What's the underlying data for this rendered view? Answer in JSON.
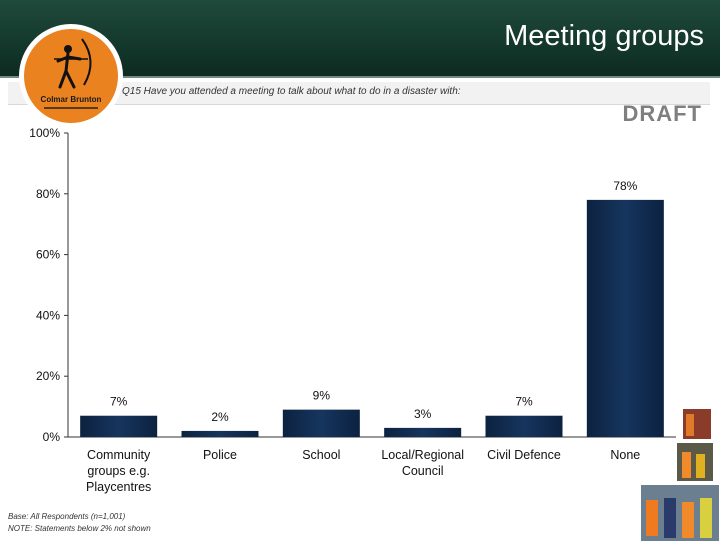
{
  "slide": {
    "title": "Meeting groups",
    "question": "Q15  Have you attended a meeting to talk about what to do in a disaster with:",
    "draft_label": "DRAFT",
    "logo_text": "Colmar Brunton",
    "footnote_base": "Base: All Respondents (n=1,001)",
    "footnote_note": "NOTE: Statements below 2% not shown",
    "colors": {
      "header": "#0c2a20",
      "bar": "#16355e",
      "logo_orange": "#e9821f"
    }
  },
  "chart_data": {
    "type": "bar",
    "categories": [
      "Community groups e.g. Playcentres",
      "Police",
      "School",
      "Local/Regional Council",
      "Civil Defence",
      "None"
    ],
    "category_lines": [
      [
        "Community",
        "groups e.g.",
        "Playcentres"
      ],
      [
        "Police"
      ],
      [
        "School"
      ],
      [
        "Local/Regional",
        "Council"
      ],
      [
        "Civil Defence"
      ],
      [
        "None"
      ]
    ],
    "values": [
      7,
      2,
      9,
      3,
      7,
      78
    ],
    "data_labels": [
      "7%",
      "2%",
      "9%",
      "3%",
      "7%",
      "78%"
    ],
    "ylim": [
      0,
      100
    ],
    "yticks": [
      0,
      20,
      40,
      60,
      80,
      100
    ],
    "ytick_labels": [
      "0%",
      "20%",
      "40%",
      "60%",
      "80%",
      "100%"
    ],
    "grid": false,
    "legend": "none"
  }
}
